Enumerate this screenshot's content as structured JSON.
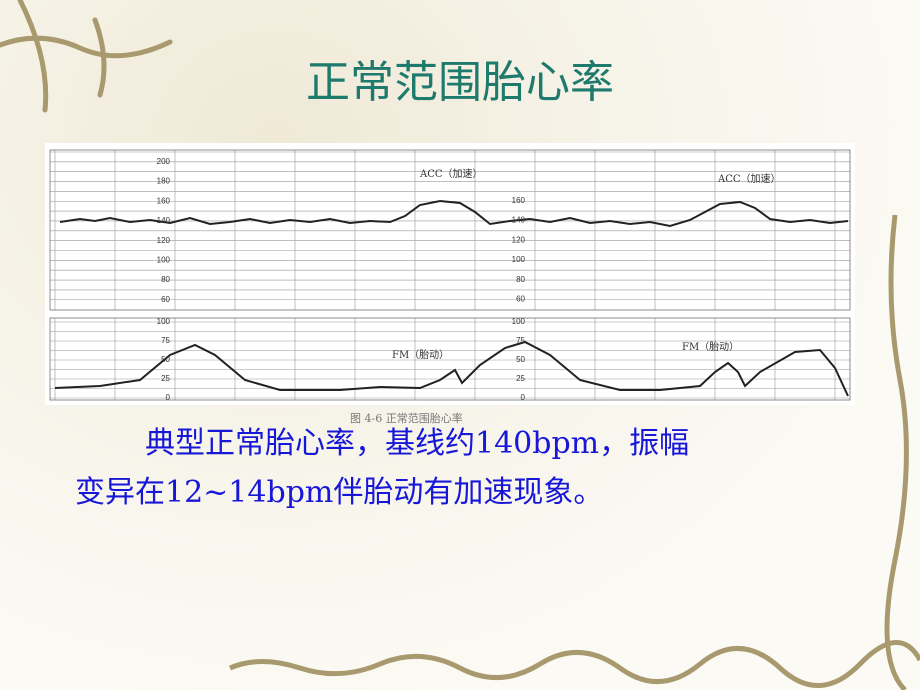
{
  "title": "正常范围胎心率",
  "figure": {
    "fhr_ticks_left": [
      "200",
      "180",
      "160",
      "140",
      "120",
      "100",
      "80",
      "60"
    ],
    "fhr_ticks_right": [
      "160",
      "140",
      "120",
      "100",
      "80",
      "60"
    ],
    "fm_ticks_left": [
      "100",
      "75",
      "50",
      "25",
      "0"
    ],
    "fm_ticks_right": [
      "100",
      "75",
      "50",
      "25",
      "0"
    ],
    "annotations": [
      "ACC（加速）",
      "ACC（加速）",
      "FM（胎动）",
      "FM（胎动）"
    ],
    "caption": "图 4-6 正常范围胎心率"
  },
  "body": {
    "lines": [
      "典型正常胎心率，基线约140bpm，振幅",
      "变异在12~14bpm伴胎动有加速现象。"
    ]
  }
}
